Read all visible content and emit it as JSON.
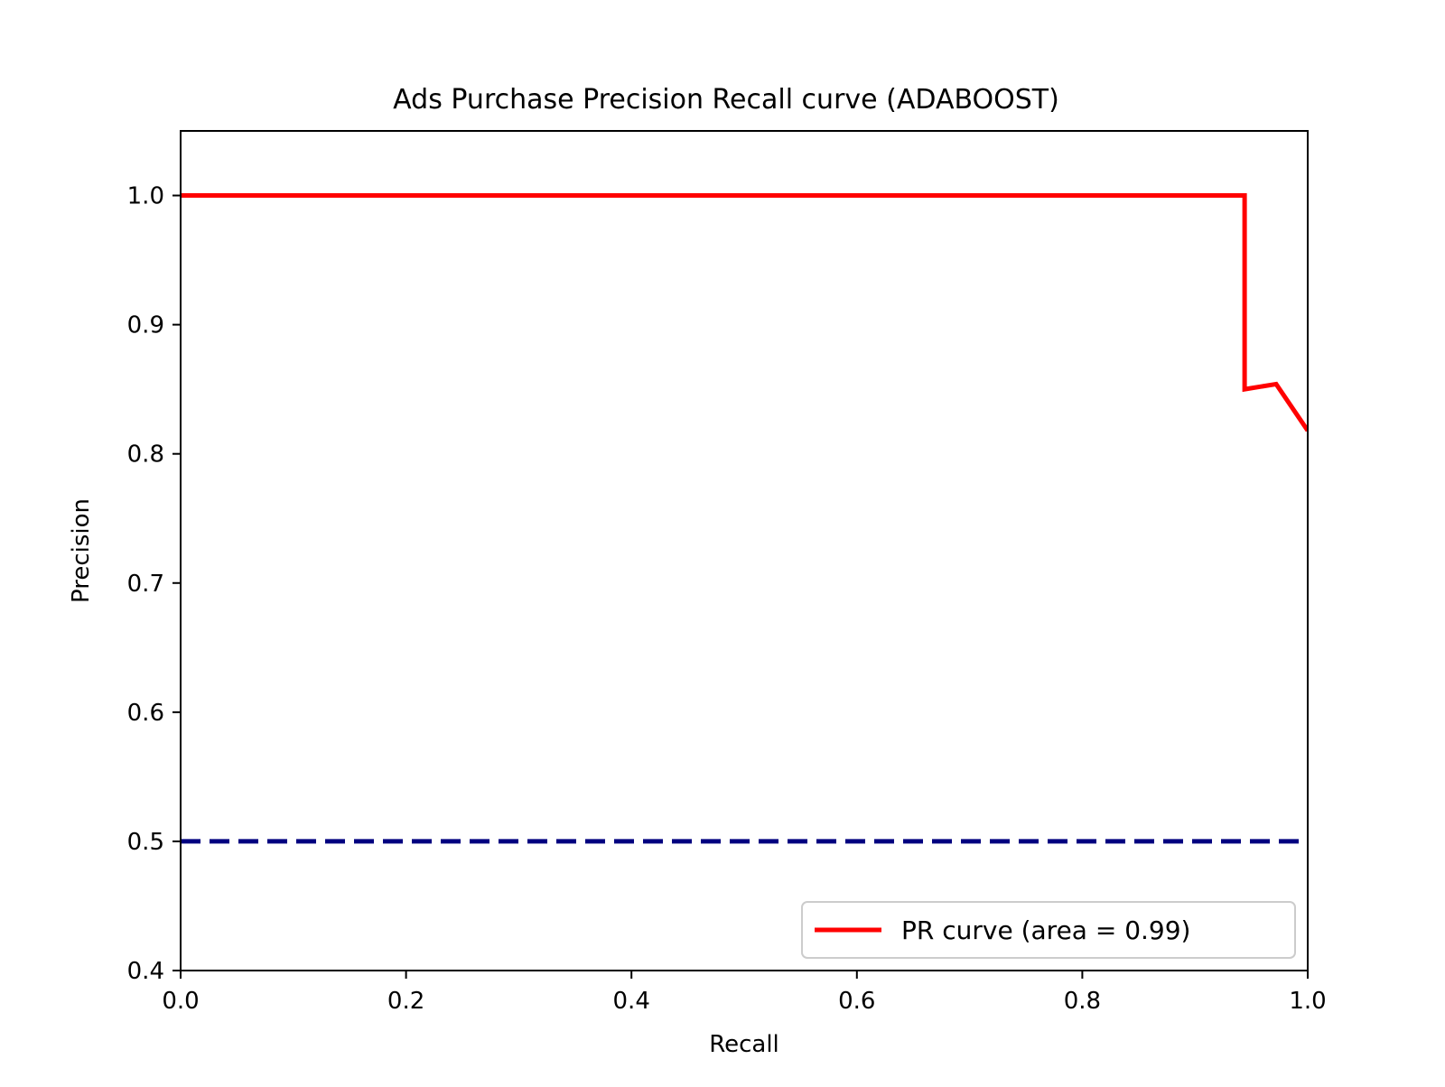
{
  "chart_data": {
    "type": "line",
    "title": "Ads Purchase Precision Recall curve (ADABOOST)",
    "xlabel": "Recall",
    "ylabel": "Precision",
    "xlim": [
      0.0,
      1.0
    ],
    "ylim": [
      0.4,
      1.05
    ],
    "xticks": [
      0.0,
      0.2,
      0.4,
      0.6,
      0.8,
      1.0
    ],
    "xtick_labels": [
      "0.0",
      "0.2",
      "0.4",
      "0.6",
      "0.8",
      "1.0"
    ],
    "yticks": [
      0.4,
      0.5,
      0.6,
      0.7,
      0.8,
      0.9,
      1.0
    ],
    "ytick_labels": [
      "0.4",
      "0.5",
      "0.6",
      "0.7",
      "0.8",
      "0.9",
      "1.0"
    ],
    "grid": false,
    "legend_position": "lower-right",
    "series": [
      {
        "name": "PR curve (area = 0.99)",
        "color": "#ff0000",
        "style": "solid",
        "x": [
          0.0,
          0.944,
          0.944,
          0.972,
          1.0
        ],
        "y": [
          1.0,
          1.0,
          0.85,
          0.854,
          0.818
        ]
      },
      {
        "color": "#000080",
        "style": "dashed",
        "x": [
          0.0,
          1.0
        ],
        "y": [
          0.5,
          0.5
        ]
      }
    ]
  }
}
